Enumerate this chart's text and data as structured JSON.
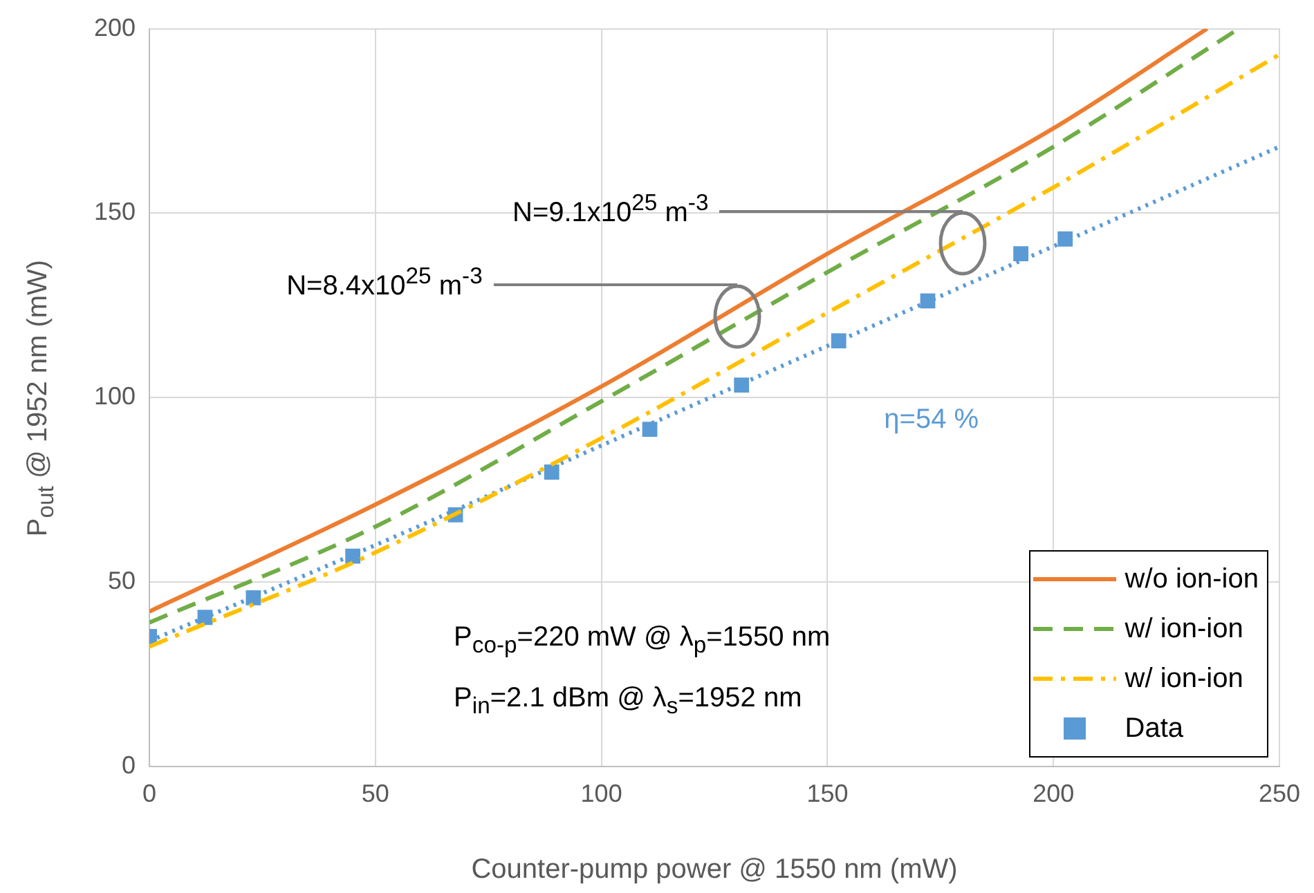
{
  "chart_data": {
    "type": "line",
    "xlabel": "Counter-pump power @ 1550 nm (mW)",
    "ylabel": "P$_{out}$ @ 1952 nm (mW)",
    "xlim": [
      0,
      250
    ],
    "xticks": [
      0,
      50,
      100,
      150,
      200,
      250
    ],
    "ylim": [
      0,
      200
    ],
    "yticks": [
      0,
      50,
      100,
      150,
      200
    ],
    "grid": true,
    "legend": "bottom right",
    "series": [
      {
        "name": "w/o ion-ion",
        "color": "#ed7d31",
        "line_style": "solid",
        "marker": "none",
        "x": [
          0,
          50,
          100,
          150,
          200,
          234
        ],
        "values": [
          42,
          71,
          103,
          139,
          173,
          200
        ]
      },
      {
        "name": "w/ ion-ion",
        "color": "#70ad47",
        "line_style": "dashed",
        "marker": "none",
        "x": [
          0,
          50,
          100,
          150,
          200,
          241
        ],
        "values": [
          39,
          65,
          99,
          134,
          168,
          200
        ]
      },
      {
        "name": "w/ ion-ion",
        "color": "#ffc000",
        "line_style": "dashdot",
        "marker": "none",
        "x": [
          0,
          50,
          100,
          150,
          200,
          250
        ],
        "values": [
          32.5,
          58,
          89,
          123,
          157,
          193
        ]
      },
      {
        "color": "#5b9bd5",
        "line_style": "dotted",
        "marker": "none",
        "x": [
          0,
          50,
          100,
          150,
          200,
          250
        ],
        "values": [
          34,
          60,
          87,
          114,
          141,
          168
        ]
      },
      {
        "name": "Data",
        "type": "scatter",
        "color": "#5b9bd5",
        "marker": "square",
        "x": [
          0,
          12.3,
          23,
          45,
          67.7,
          89,
          110.7,
          131,
          152.5,
          172.2,
          192.8,
          202.6
        ],
        "values": [
          35.2,
          40.4,
          45.7,
          57,
          68.2,
          79.8,
          91.4,
          103.4,
          115.4,
          126.2,
          139,
          143
        ]
      }
    ],
    "annotations": [
      "N=9.1x10$^{25}$ m$^{-3}$",
      "N=8.4x10$^{25}$ m$^{-3}$",
      "η=54 %",
      "P$_{co-p}$=220 mW @ λ$_{p}$=1550 nm",
      "P$_{in}$=2.1 dBm @ λ$_{s}$=1952 nm"
    ]
  }
}
